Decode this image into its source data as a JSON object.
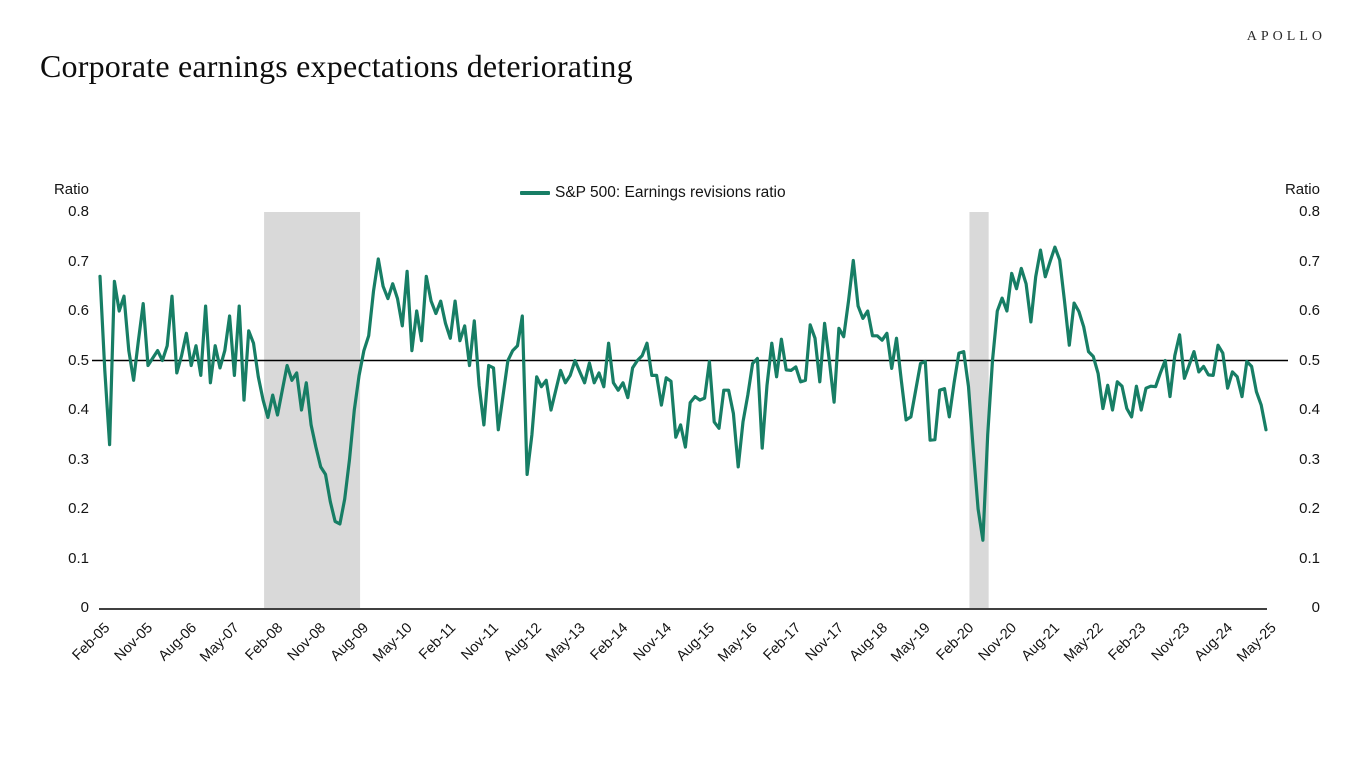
{
  "header": {
    "logo": "APOLLO",
    "title": "Corporate earnings expectations deteriorating"
  },
  "chart": {
    "legend": "S&P 500: Earnings revisions ratio",
    "y_axis_title": "Ratio",
    "colors": {
      "series": "#177E65",
      "recession_band": "#D9D9D9",
      "reference_line": "#000000",
      "axis_line": "#000000",
      "text": "#141414"
    }
  },
  "chart_data": {
    "type": "line",
    "title": "Corporate earnings expectations deteriorating",
    "series_name": "S&P 500: Earnings revisions ratio",
    "frequency": "monthly",
    "x_start": "Feb-2005",
    "x_end": "May-2025",
    "x_tick_labels": [
      "Feb-05",
      "Nov-05",
      "Aug-06",
      "May-07",
      "Feb-08",
      "Nov-08",
      "Aug-09",
      "May-10",
      "Feb-11",
      "Nov-11",
      "Aug-12",
      "May-13",
      "Feb-14",
      "Nov-14",
      "Aug-15",
      "May-16",
      "Feb-17",
      "Nov-17",
      "Aug-18",
      "May-19",
      "Feb-20",
      "Nov-20",
      "Aug-21",
      "May-22",
      "Feb-23",
      "Nov-23",
      "Aug-24",
      "May-25"
    ],
    "x_ticks_every_months": 9,
    "ylabel": "Ratio",
    "ylim": [
      0,
      0.8
    ],
    "y_ticks": [
      0.8,
      0.7,
      0.6,
      0.5,
      0.4,
      0.3,
      0.2,
      0.1,
      0
    ],
    "grid": false,
    "legend_position": "top-center",
    "reference_line_y": 0.5,
    "shaded_periods": [
      {
        "name": "recession-2008-09",
        "from_month_index": 34.2,
        "to_month_index": 54.2
      },
      {
        "name": "recession-2020",
        "from_month_index": 181.2,
        "to_month_index": 185.2
      }
    ],
    "values": [
      0.67,
      0.48,
      0.33,
      0.66,
      0.6,
      0.63,
      0.52,
      0.46,
      0.54,
      0.615,
      0.49,
      0.505,
      0.52,
      0.5,
      0.53,
      0.63,
      0.475,
      0.51,
      0.555,
      0.49,
      0.53,
      0.47,
      0.61,
      0.455,
      0.53,
      0.485,
      0.52,
      0.59,
      0.47,
      0.61,
      0.42,
      0.56,
      0.535,
      0.467,
      0.42,
      0.385,
      0.43,
      0.39,
      0.44,
      0.49,
      0.46,
      0.475,
      0.4,
      0.455,
      0.37,
      0.325,
      0.285,
      0.27,
      0.215,
      0.175,
      0.17,
      0.22,
      0.3,
      0.4,
      0.47,
      0.52,
      0.55,
      0.64,
      0.705,
      0.65,
      0.625,
      0.655,
      0.625,
      0.57,
      0.68,
      0.52,
      0.6,
      0.54,
      0.67,
      0.62,
      0.595,
      0.62,
      0.575,
      0.545,
      0.62,
      0.54,
      0.57,
      0.49,
      0.58,
      0.45,
      0.37,
      0.49,
      0.485,
      0.36,
      0.43,
      0.5,
      0.52,
      0.53,
      0.59,
      0.27,
      0.35,
      0.467,
      0.447,
      0.46,
      0.4,
      0.44,
      0.48,
      0.455,
      0.47,
      0.5,
      0.477,
      0.455,
      0.495,
      0.455,
      0.475,
      0.447,
      0.535,
      0.455,
      0.44,
      0.455,
      0.425,
      0.485,
      0.5,
      0.51,
      0.535,
      0.47,
      0.47,
      0.41,
      0.465,
      0.458,
      0.345,
      0.37,
      0.325,
      0.415,
      0.427,
      0.42,
      0.424,
      0.498,
      0.376,
      0.363,
      0.44,
      0.44,
      0.393,
      0.285,
      0.376,
      0.43,
      0.494,
      0.504,
      0.323,
      0.45,
      0.535,
      0.467,
      0.543,
      0.481,
      0.48,
      0.487,
      0.457,
      0.46,
      0.572,
      0.545,
      0.457,
      0.575,
      0.5,
      0.416,
      0.565,
      0.548,
      0.62,
      0.702,
      0.61,
      0.585,
      0.6,
      0.55,
      0.55,
      0.541,
      0.555,
      0.484,
      0.545,
      0.46,
      0.38,
      0.386,
      0.44,
      0.494,
      0.498,
      0.339,
      0.34,
      0.44,
      0.443,
      0.386,
      0.455,
      0.515,
      0.518,
      0.447,
      0.319,
      0.2,
      0.137,
      0.35,
      0.5,
      0.6,
      0.626,
      0.6,
      0.676,
      0.645,
      0.686,
      0.655,
      0.578,
      0.669,
      0.723,
      0.669,
      0.7,
      0.729,
      0.703,
      0.62,
      0.531,
      0.616,
      0.599,
      0.568,
      0.518,
      0.508,
      0.474,
      0.403,
      0.45,
      0.4,
      0.457,
      0.448,
      0.403,
      0.386,
      0.448,
      0.4,
      0.444,
      0.448,
      0.447,
      0.475,
      0.5,
      0.427,
      0.51,
      0.552,
      0.464,
      0.491,
      0.518,
      0.477,
      0.488,
      0.471,
      0.47,
      0.531,
      0.515,
      0.444,
      0.477,
      0.467,
      0.427,
      0.498,
      0.488,
      0.437,
      0.41,
      0.36
    ]
  }
}
